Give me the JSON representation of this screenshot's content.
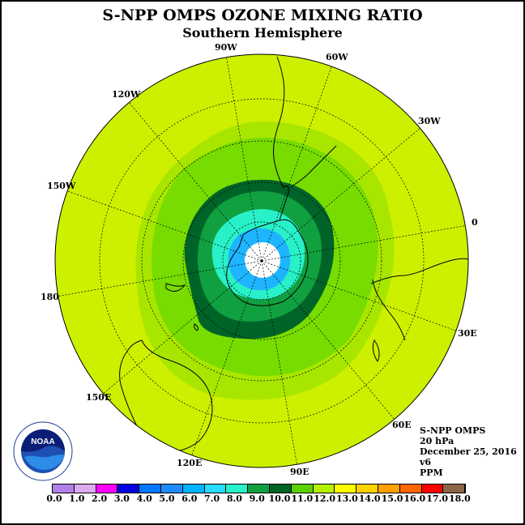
{
  "title": "S-NPP OMPS OZONE MIXING RATIO",
  "subtitle": "Southern Hemisphere",
  "longitude_labels": [
    "90W",
    "60W",
    "30W",
    "0",
    "30E",
    "60E",
    "90E",
    "120E",
    "150E",
    "180",
    "150W",
    "120W"
  ],
  "info": {
    "instrument": "S-NPP OMPS",
    "level": "20 hPa",
    "date": "December 25, 2016",
    "version": "v6",
    "units": "PPM"
  },
  "logo": {
    "text": "NOAA",
    "icon": "noaa-logo-icon"
  },
  "colorbar": {
    "ticks": [
      "0.0",
      "1.0",
      "2.0",
      "3.0",
      "4.0",
      "5.0",
      "6.0",
      "7.0",
      "8.0",
      "9.0",
      "10.0",
      "11.0",
      "12.0",
      "13.0",
      "14.0",
      "15.0",
      "16.0",
      "17.0",
      "18.0"
    ],
    "colors": [
      "#b280e8",
      "#dcaaf0",
      "#ff00ff",
      "#0000e0",
      "#0078ff",
      "#1e8cff",
      "#00b4ff",
      "#28dcff",
      "#28f0c8",
      "#10a040",
      "#006428",
      "#5ad200",
      "#b4f000",
      "#ffff00",
      "#ffd200",
      "#ffa000",
      "#ff6400",
      "#ff0000",
      "#8c6446"
    ]
  },
  "map_data": {
    "projection": "south-polar-stereographic",
    "field": "ozone mixing ratio",
    "units": "PPM",
    "colors": {
      "background": "#cdf000",
      "band_11_12": "#a8e600",
      "band_10_11": "#78dc00",
      "band_9_10": "#006428",
      "band_8_9": "#10a040",
      "band_7_8": "#28f0c8",
      "band_6_7": "#1eb4ff",
      "center_missing": "#ffffff"
    }
  }
}
